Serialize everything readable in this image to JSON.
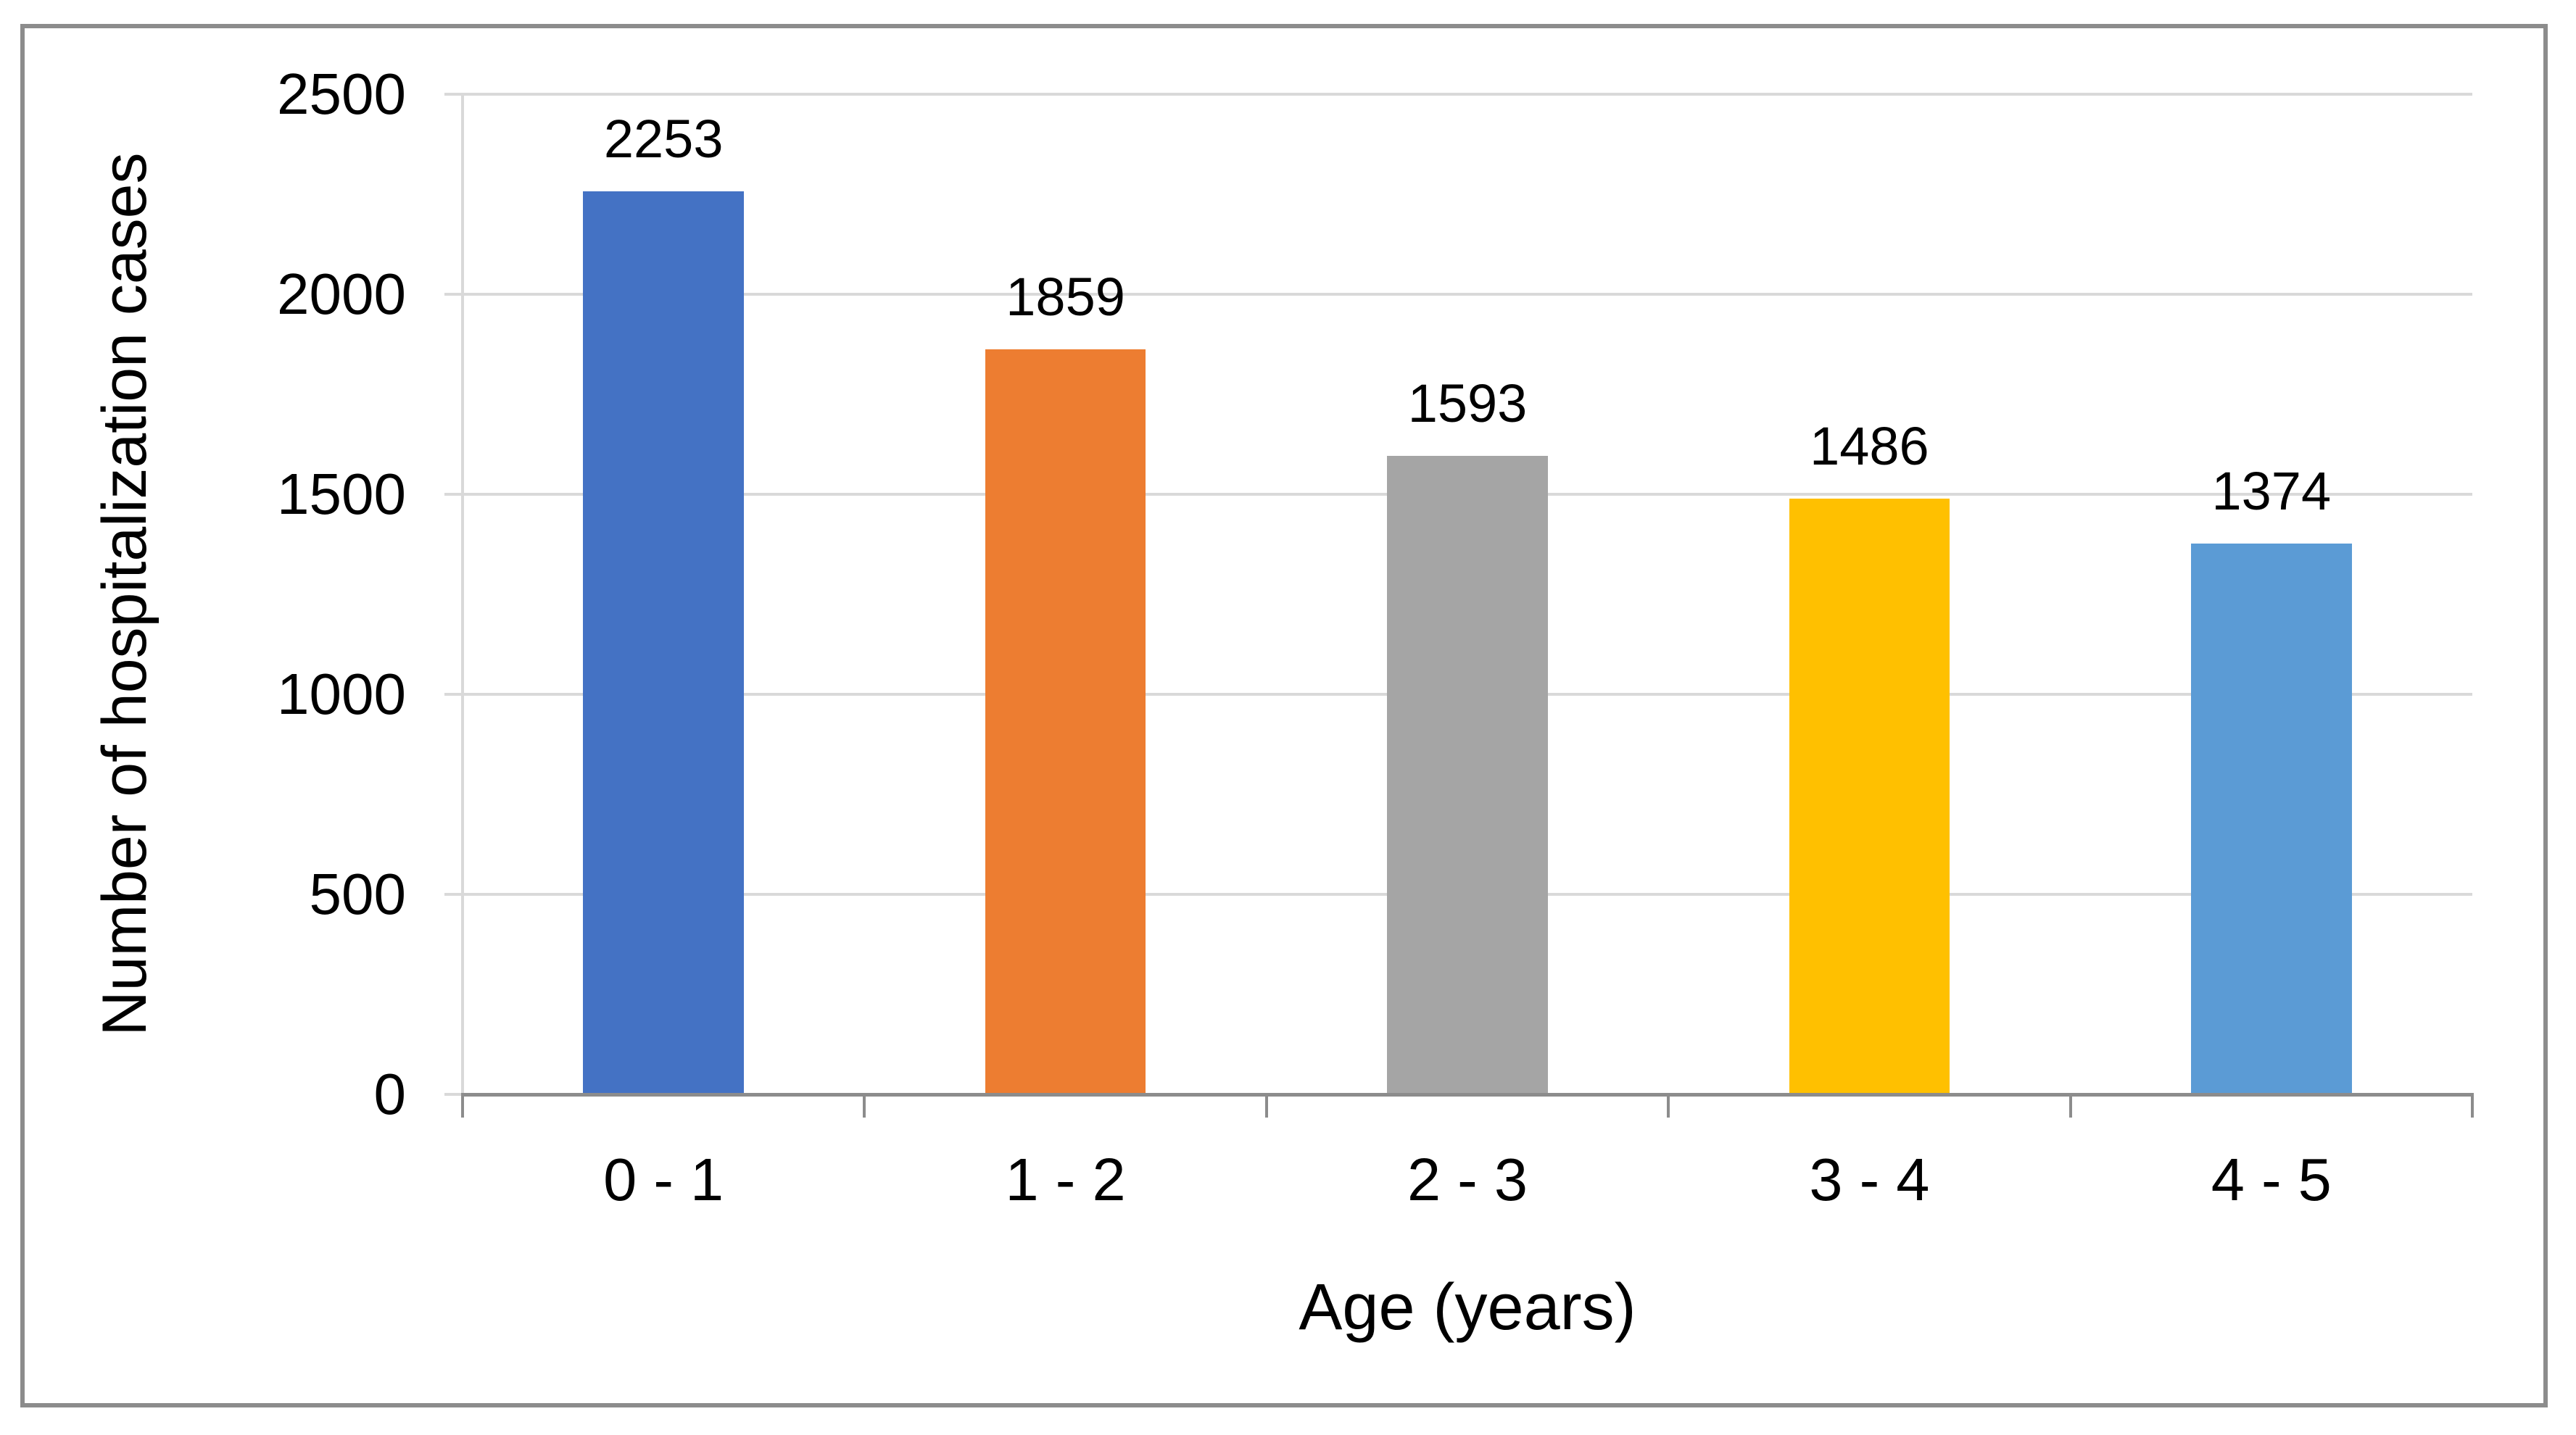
{
  "chart_data": {
    "type": "bar",
    "categories": [
      "0 - 1",
      "1 - 2",
      "2 - 3",
      "3 - 4",
      "4 - 5"
    ],
    "values": [
      2253,
      1859,
      1593,
      1486,
      1374
    ],
    "data_labels": [
      "2253",
      "1859",
      "1593",
      "1486",
      "1374"
    ],
    "title": "",
    "xlabel": "Age (years)",
    "ylabel": "Number of hospitalization cases",
    "ylim": [
      0,
      2500
    ],
    "y_ticks": [
      0,
      500,
      1000,
      1500,
      2000,
      2500
    ],
    "grid": true,
    "legend_position": "none",
    "bar_colors": [
      "#4472C4",
      "#ED7D31",
      "#A5A5A5",
      "#FFC000",
      "#5B9BD5"
    ]
  },
  "colors": {
    "gridline": "#D9D9D9",
    "y_axis_line": "#D9D9D9",
    "x_axis_line": "#8C8C8C",
    "figure_border": "#8C8C8C",
    "text": "#000000",
    "background": "#FFFFFF"
  }
}
